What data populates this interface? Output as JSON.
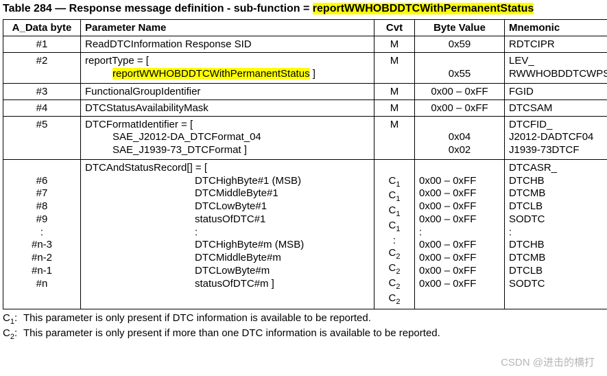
{
  "caption_prefix": "Table 284 — Response message definition - sub-function = ",
  "caption_hl": "reportWWHOBDDTCWithPermanentStatus",
  "headers": {
    "byte": "A_Data byte",
    "param": "Parameter Name",
    "cvt": "Cvt",
    "value": "Byte Value",
    "mnem": "Mnemonic"
  },
  "row1": {
    "byte": "#1",
    "param": "ReadDTCInformation Response SID",
    "cvt": "M",
    "value": "0x59",
    "mnem": "RDTCIPR"
  },
  "row2": {
    "byte": "#2",
    "param_pre": "reportType = [",
    "param_hl": "reportWWHOBDDTCWithPermanentStatus",
    "param_post": " ]",
    "cvt": "M",
    "value": "0x55",
    "mnem1": "LEV_",
    "mnem2": "RWWHOBDDTCWPS"
  },
  "row3": {
    "byte": "#3",
    "param": "FunctionalGroupIdentifier",
    "cvt": "M",
    "value": "0x00 – 0xFF",
    "mnem": "FGID"
  },
  "row4": {
    "byte": "#4",
    "param": "DTCStatusAvailabilityMask",
    "cvt": "M",
    "value": "0x00 – 0xFF",
    "mnem": "DTCSAM"
  },
  "row5": {
    "byte": "#5",
    "p0": "DTCFormatIdentifier = [",
    "p1": "SAE_J2012-DA_DTCFormat_04",
    "p2": "SAE_J1939-73_DTCFormat ]",
    "cvt": "M",
    "v1": "0x04",
    "v2": "0x02",
    "m0": "DTCFID_",
    "m1": "J2012-DADTCF04",
    "m2": "J1939-73DTCF"
  },
  "row6": {
    "b1": "#6",
    "b2": "#7",
    "b3": "#8",
    "b4": "#9",
    "bdots": ":",
    "b5": "#n-3",
    "b6": "#n-2",
    "b7": "#n-1",
    "b8": "#n",
    "p0": "DTCAndStatusRecord[] = [",
    "p1": "DTCHighByte#1 (MSB)",
    "p2": "DTCMiddleByte#1",
    "p3": "DTCLowByte#1",
    "p4": "statusOfDTC#1",
    "pdots": ":",
    "p5": "DTCHighByte#m (MSB)",
    "p6": "DTCMiddleByte#m",
    "p7": "DTCLowByte#m",
    "p8": "statusOfDTC#m ]",
    "c1": "C",
    "c1s": "1",
    "c2": "C",
    "c2s": "2",
    "cdots": ":",
    "v": "0x00 – 0xFF",
    "vdots": ":",
    "m0": "DTCASR_",
    "m1": "DTCHB",
    "m2": "DTCMB",
    "m3": "DTCLB",
    "m4": "SODTC",
    "mdots": ":"
  },
  "foot": {
    "c1_lbl": "C",
    "c1_sub": "1",
    "c1_txt": "This parameter is only present if DTC information is available to be reported.",
    "c2_lbl": "C",
    "c2_sub": "2",
    "c2_txt": "This parameter is only present if more than one DTC information is available to be reported."
  },
  "watermark": "CSDN @进击的横打"
}
